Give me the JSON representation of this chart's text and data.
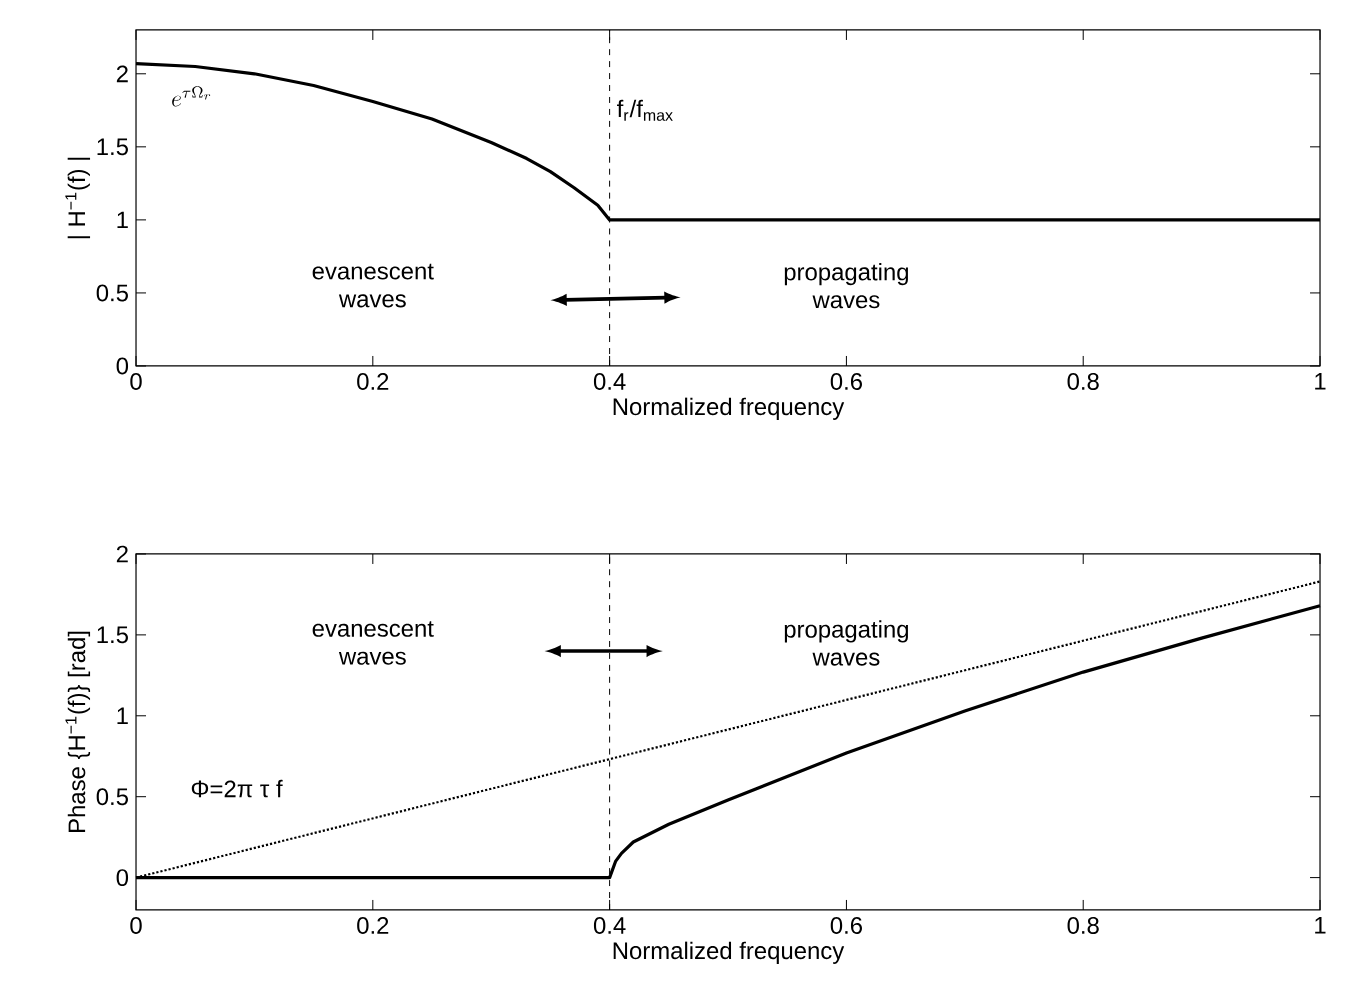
{
  "chart_data": [
    {
      "type": "line",
      "xlabel": "Normalized frequency",
      "ylabel": "| H$^{−1}$(f) |",
      "xlim": [
        0,
        1
      ],
      "xticks": [
        0,
        0.2,
        0.4,
        0.6,
        0.8,
        1
      ],
      "ylim": [
        0,
        2.3
      ],
      "yticks": [
        0,
        0.5,
        1,
        1.5,
        2
      ],
      "grid": false,
      "series": [
        {
          "color": "#000000",
          "line_style": "solid",
          "x": [
            0,
            0.05,
            0.1,
            0.15,
            0.2,
            0.25,
            0.3,
            0.33,
            0.35,
            0.37,
            0.39,
            0.4,
            1
          ],
          "values": [
            2.07,
            2.05,
            2.0,
            1.92,
            1.81,
            1.69,
            1.53,
            1.42,
            1.33,
            1.22,
            1.1,
            1.0,
            1.0
          ]
        }
      ],
      "ref_lines": [
        {
          "axis": "x",
          "value": 0.4,
          "label": "f$_{r}$/f$_{max}$",
          "color": "#000000",
          "line_style": "dashed"
        }
      ],
      "annotations": [
        {
          "text": "e^{\\tau\\Omega_r}",
          "x": 0,
          "y": 2.07
        },
        "evanescent waves",
        "propagating waves"
      ]
    },
    {
      "type": "line",
      "xlabel": "Normalized frequency",
      "ylabel": "Phase {H$^{−1}$(f)} [rad]",
      "xlim": [
        0,
        1
      ],
      "xticks": [
        0,
        0.2,
        0.4,
        0.6,
        0.8,
        1
      ],
      "ylim": [
        -0.2,
        2
      ],
      "yticks": [
        0,
        0.5,
        1,
        1.5,
        2
      ],
      "grid": false,
      "series": [
        {
          "color": "#000000",
          "line_style": "solid",
          "x": [
            0,
            0.4,
            0.405,
            0.41,
            0.42,
            0.45,
            0.5,
            0.6,
            0.7,
            0.8,
            0.9,
            1
          ],
          "values": [
            0,
            0,
            0.1,
            0.15,
            0.22,
            0.33,
            0.48,
            0.77,
            1.03,
            1.27,
            1.48,
            1.68
          ]
        },
        {
          "color": "#000000",
          "line_style": "dotted",
          "x": [
            0,
            1
          ],
          "values": [
            0,
            1.83
          ]
        }
      ],
      "ref_lines": [
        {
          "axis": "x",
          "value": 0.4,
          "color": "#000000",
          "line_style": "dashed"
        }
      ],
      "annotations": [
        "evanescent waves",
        "propagating waves",
        "Φ=2π τ f"
      ]
    }
  ]
}
